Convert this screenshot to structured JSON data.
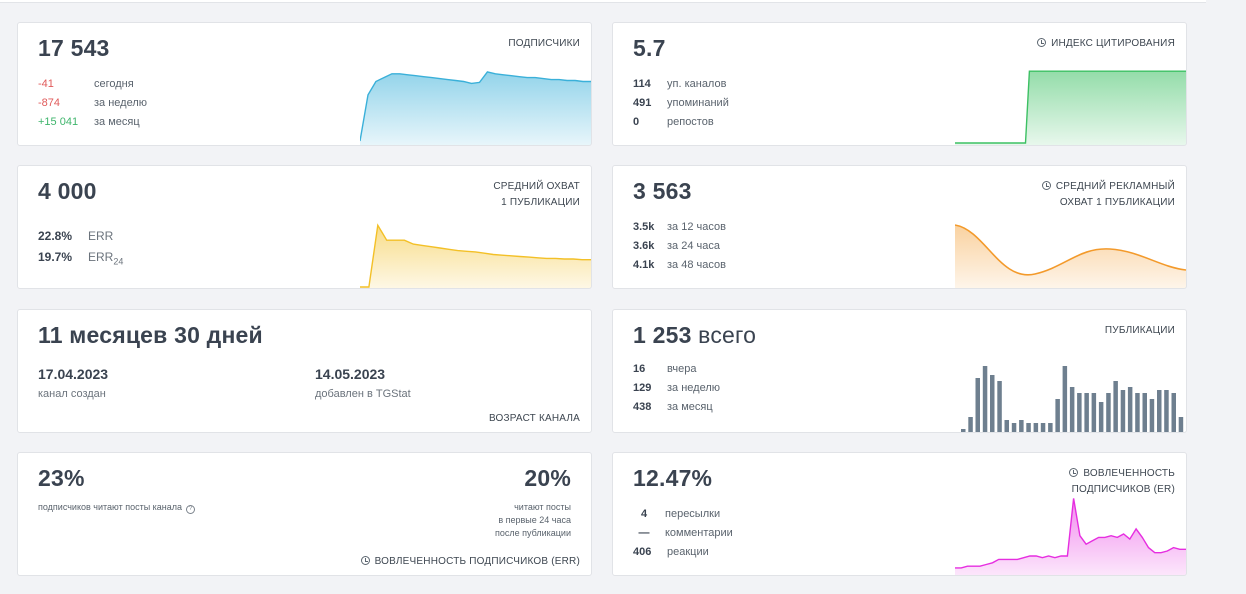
{
  "subscribers": {
    "value": "17 543",
    "label": "ПОДПИСЧИКИ",
    "rows": [
      {
        "value": "-41",
        "text": "сегодня"
      },
      {
        "value": "-874",
        "text": "за неделю"
      },
      {
        "value": "+15 041",
        "text": "за месяц"
      }
    ],
    "color": "#3ab0d9",
    "series": [
      0,
      48,
      62,
      66,
      70,
      70,
      69,
      68,
      67,
      66,
      65,
      64,
      63,
      62,
      60,
      61,
      72,
      70,
      69,
      68,
      67,
      66,
      66,
      65,
      64,
      64,
      63,
      63,
      62,
      62
    ]
  },
  "citation": {
    "value": "5.7",
    "label": "ИНДЕКС ЦИТИРОВАНИЯ",
    "rows": [
      {
        "value": "114",
        "text": "уп. каналов"
      },
      {
        "value": "491",
        "text": "упоминаний"
      },
      {
        "value": "0",
        "text": "репостов"
      }
    ],
    "color": "#3cc063",
    "series": [
      0,
      0,
      0,
      0,
      0,
      0,
      0,
      0,
      0,
      0,
      0,
      0,
      0,
      0,
      0,
      0,
      0,
      0,
      0,
      10,
      10,
      10,
      10,
      10,
      10,
      10,
      10,
      10,
      10,
      10,
      10,
      10,
      10,
      10,
      10,
      10,
      10,
      10,
      10,
      10,
      10,
      10,
      10,
      10,
      10,
      10,
      10,
      10,
      10,
      10,
      10,
      10,
      10,
      10,
      10,
      10,
      10,
      10,
      10,
      10
    ]
  },
  "reach": {
    "value": "4 000",
    "label1": "СРЕДНИЙ ОХВАТ",
    "label2": "1 ПУБЛИКАЦИИ",
    "err1_value": "22.8%",
    "err1_text": "ERR",
    "err24_value": "19.7%",
    "err24_text": "ERR",
    "err24_sub": "24",
    "color": "#f3c027",
    "series": [
      0,
      0,
      95,
      72,
      72,
      72,
      66,
      64,
      62,
      60,
      58,
      56,
      55,
      54,
      52,
      50,
      49,
      48,
      47,
      46,
      45,
      44,
      44,
      43,
      43,
      42,
      42
    ]
  },
  "ad_reach": {
    "value": "3 563",
    "label1": "СРЕДНИЙ РЕКЛАМНЫЙ",
    "label2": "ОХВАТ 1 ПУБЛИКАЦИИ",
    "rows": [
      {
        "value": "3.5k",
        "text": "за 12 часов"
      },
      {
        "value": "3.6k",
        "text": "за 24 часа"
      },
      {
        "value": "4.1k",
        "text": "за 48 часов"
      }
    ],
    "color": "#f39a2b"
  },
  "age": {
    "value": "11 месяцев 30 дней",
    "created_date": "17.04.2023",
    "created_text": "канал создан",
    "added_date": "14.05.2023",
    "added_text": "добавлен в TGStat",
    "label": "ВОЗРАСТ КАНАЛА"
  },
  "posts": {
    "value": "1 253",
    "value_suffix": "всего",
    "label": "ПУБЛИКАЦИИ",
    "rows": [
      {
        "value": "16",
        "text": "вчера"
      },
      {
        "value": "129",
        "text": "за неделю"
      },
      {
        "value": "438",
        "text": "за месяц"
      }
    ],
    "color": "#6e7f8f",
    "series": [
      1,
      5,
      18,
      22,
      19,
      17,
      4,
      3,
      4,
      3,
      3,
      3,
      3,
      11,
      22,
      15,
      13,
      13,
      13,
      10,
      13,
      17,
      14,
      15,
      13,
      13,
      11,
      14,
      14,
      13,
      5
    ]
  },
  "err": {
    "value1": "23%",
    "text1": "подписчиков читают посты канала",
    "value2": "20%",
    "text2_lines": [
      "читают посты",
      "в первые 24 часа",
      "после публикации"
    ],
    "label": "ВОВЛЕЧЕННОСТЬ ПОДПИСЧИКОВ (ERR)"
  },
  "er": {
    "value": "12.47%",
    "label1": "ВОВЛЕЧЕННОСТЬ",
    "label2": "ПОДПИСЧИКОВ (ER)",
    "rows": [
      {
        "value": "4",
        "text": "пересылки"
      },
      {
        "value": "—",
        "text": "комментарии"
      },
      {
        "value": "406",
        "text": "реакции"
      }
    ],
    "color": "#e62ee0",
    "series": [
      3,
      3,
      4,
      4,
      4,
      5,
      6,
      8,
      8,
      8,
      8,
      9,
      10,
      10,
      9,
      10,
      9,
      10,
      10,
      44,
      22,
      17,
      19,
      21,
      21,
      22,
      21,
      23,
      20,
      26,
      21,
      15,
      12,
      12,
      13,
      15,
      14,
      14
    ]
  }
}
